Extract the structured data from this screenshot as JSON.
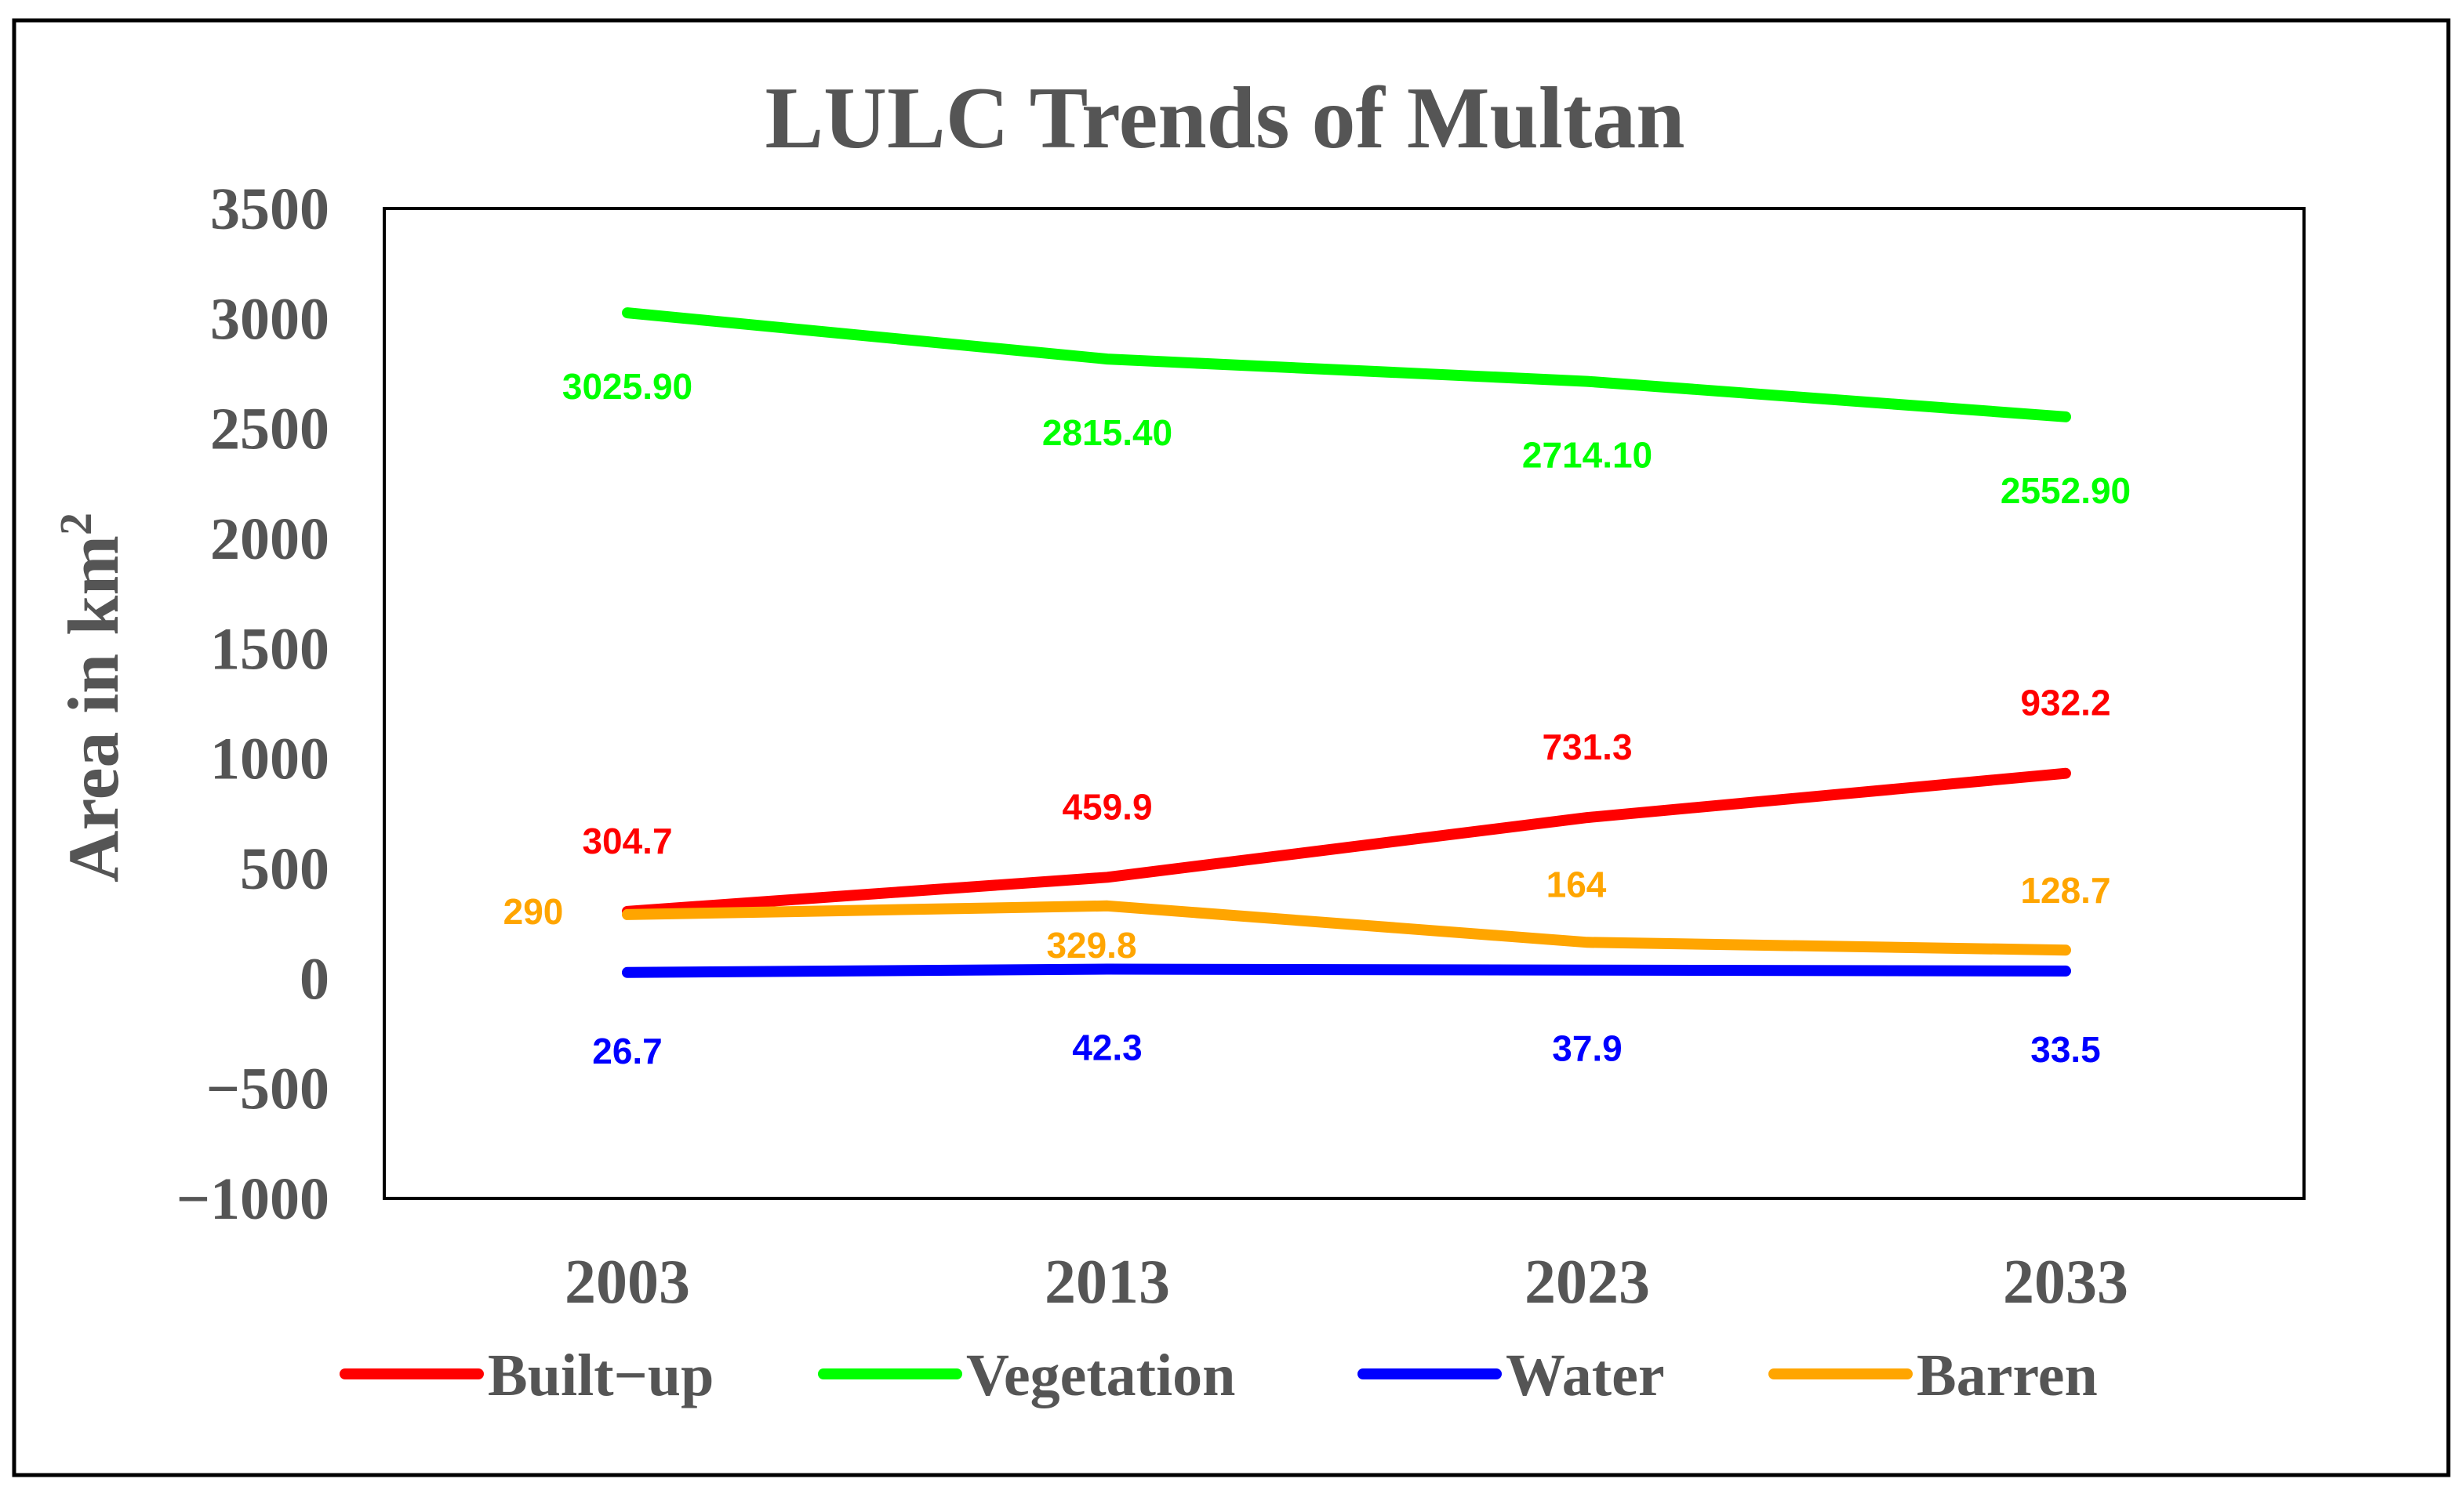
{
  "chart_data": {
    "type": "line",
    "title": "LULC Trends of Multan",
    "ylabel": "Area in km",
    "ylabel_sup": "2",
    "xlabel": "",
    "categories": [
      "2003",
      "2013",
      "2023",
      "2033"
    ],
    "ylim": [
      -1000,
      3500
    ],
    "yticks": [
      3500,
      3000,
      2500,
      2000,
      1500,
      1000,
      500,
      0,
      -500,
      -1000
    ],
    "ytick_labels": [
      "3500",
      "3000",
      "2500",
      "2000",
      "1500",
      "1000",
      "500",
      "0",
      "−500",
      "−1000"
    ],
    "grid": false,
    "legend_position": "bottom",
    "series": [
      {
        "name": "Built−up",
        "color": "#ff0000",
        "values": [
          304.7,
          459.9,
          731.3,
          932.2
        ],
        "labels": [
          "304.7",
          "459.9",
          "731.3",
          "932.2"
        ],
        "label_position": "above"
      },
      {
        "name": "Vegetation",
        "color": "#00ff00",
        "values": [
          3025.9,
          2815.4,
          2714.1,
          2552.9
        ],
        "labels": [
          "3025.90",
          "2815.40",
          "2714.10",
          "2552.90"
        ],
        "label_position": "below"
      },
      {
        "name": "Water",
        "color": "#0000ff",
        "values": [
          26.7,
          42.3,
          37.9,
          33.5
        ],
        "labels": [
          "26.7",
          "42.3",
          "37.9",
          "33.5"
        ],
        "label_position": "below"
      },
      {
        "name": "Barren",
        "color": "#ffa500",
        "values": [
          290,
          329.8,
          164,
          128.7
        ],
        "labels": [
          "290",
          "329.8",
          "164",
          "128.7"
        ],
        "label_position": "custom"
      }
    ]
  }
}
